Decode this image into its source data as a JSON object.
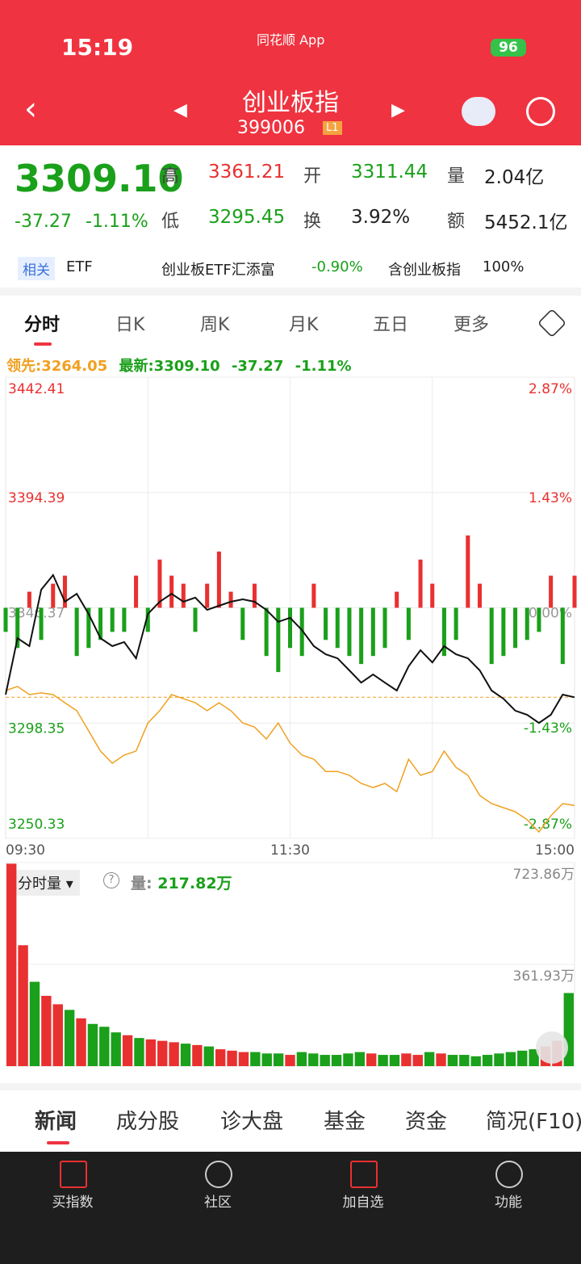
{
  "status": {
    "time": "15:19",
    "app": "同花顺 App",
    "battery": "96"
  },
  "header": {
    "title": "创业板指",
    "code": "399006",
    "level": "L1"
  },
  "quote": {
    "price": "3309.10",
    "change": "-37.27",
    "pct": "-1.11%",
    "fields": [
      {
        "label": "高",
        "value": "3361.21"
      },
      {
        "label": "开",
        "value": "3311.44"
      },
      {
        "label": "量",
        "value": "2.04亿"
      },
      {
        "label": "低",
        "value": "3295.45"
      },
      {
        "label": "换",
        "value": "3.92%"
      },
      {
        "label": "额",
        "value": "5452.1亿"
      }
    ]
  },
  "etf_row": {
    "tag": "相关",
    "etf": "ETF",
    "fund": "创业板ETF汇添富",
    "fund_pct": "-0.90%",
    "holds": "含创业板指",
    "holds_pct": "100%"
  },
  "tabs": [
    "分时",
    "日K",
    "周K",
    "月K",
    "五日",
    "更多"
  ],
  "info": {
    "lead_label": "领先:",
    "lead": "3264.05",
    "last_label": "最新:",
    "last": "3309.10",
    "change": "-37.27",
    "pct": "-1.11%"
  },
  "volume_info": {
    "selector": "分时量",
    "label": "量:",
    "value": "217.82万"
  },
  "section_tabs": [
    "新闻",
    "成分股",
    "诊大盘",
    "基金",
    "资金",
    "简况(F10)"
  ],
  "nav": [
    "买指数",
    "社区",
    "加自选",
    "功能"
  ],
  "chart_data": [
    {
      "type": "line",
      "x": [
        0,
        5,
        10,
        15,
        20,
        25,
        30,
        35,
        40,
        45,
        50,
        55,
        60,
        65,
        70,
        75,
        80,
        85,
        90,
        95,
        100,
        105,
        110,
        115,
        120,
        125,
        130,
        135,
        140,
        145,
        150,
        155,
        160,
        165,
        170,
        175,
        180,
        185,
        190,
        195,
        200,
        205,
        210,
        215,
        220,
        225,
        230,
        235,
        240
      ],
      "xlim": [
        0,
        240
      ],
      "xticks": [
        {
          "value": 0,
          "label": "09:30"
        },
        {
          "value": 120,
          "label": "11:30"
        },
        {
          "value": 240,
          "label": "15:00"
        }
      ],
      "ylim": [
        3250.33,
        3442.41
      ],
      "yticks": [
        3250.33,
        3298.35,
        3346.37,
        3394.39,
        3442.41
      ],
      "y2lim": [
        -2.87,
        2.87
      ],
      "y2ticks": [
        {
          "value": -2.87,
          "label": "-2.87%"
        },
        {
          "value": -1.43,
          "label": "-1.43%"
        },
        {
          "value": 0,
          "label": "0.00%"
        },
        {
          "value": 1.43,
          "label": "1.43%"
        },
        {
          "value": 2.87,
          "label": "2.87%"
        }
      ],
      "series": [
        {
          "color": "#111111",
          "values": [
            3310.2,
            3333.7,
            3330.4,
            3353.9,
            3360,
            3348.9,
            3352.2,
            3343.8,
            3333.7,
            3330.4,
            3332.1,
            3325.3,
            3343.8,
            3348.9,
            3352.2,
            3348.9,
            3350.6,
            3345.5,
            3347.2,
            3348.9,
            3349.9,
            3348.9,
            3345.5,
            3340.5,
            3342.2,
            3337.1,
            3330.4,
            3327,
            3325.3,
            3320.3,
            3315.2,
            3318.6,
            3315.2,
            3311.9,
            3322,
            3328.7,
            3323.6,
            3330.4,
            3327,
            3325.3,
            3320.3,
            3311.9,
            3308.5,
            3303.5,
            3301.8,
            3298.4,
            3301.8,
            3310.2,
            3309.1
          ]
        },
        {
          "color": "#f0a020",
          "values": [
            3311.9,
            3313.6,
            3310.2,
            3310.9,
            3310.2,
            3306.8,
            3303.5,
            3295.1,
            3286.7,
            3281.6,
            3285,
            3286.7,
            3298.4,
            3303.5,
            3310.2,
            3308.5,
            3306.8,
            3303.5,
            3306.8,
            3303.5,
            3298.4,
            3296.7,
            3291.7,
            3298.4,
            3290,
            3285,
            3283.3,
            3278.2,
            3278.2,
            3276.6,
            3273.2,
            3271.5,
            3273.2,
            3269.8,
            3283.3,
            3276.6,
            3278.2,
            3286.7,
            3279.9,
            3276.6,
            3268.2,
            3264.8,
            3263.1,
            3261.4,
            3258.1,
            3253,
            3259.7,
            3264.8,
            3264.05
          ]
        }
      ],
      "bar_values": [
        -0.3,
        -0.5,
        0.2,
        -0.4,
        0.3,
        0.4,
        -0.6,
        -0.5,
        -0.4,
        -0.3,
        -0.3,
        0.4,
        -0.3,
        0.6,
        0.4,
        0.3,
        -0.3,
        0.3,
        0.7,
        0.2,
        -0.4,
        0.3,
        -0.6,
        -0.8,
        -0.5,
        -0.6,
        0.3,
        -0.4,
        -0.5,
        -0.6,
        -0.7,
        -0.6,
        -0.5,
        0.2,
        -0.4,
        0.6,
        0.3,
        -0.6,
        -0.4,
        0.9,
        0.3,
        -0.7,
        -0.6,
        -0.5,
        -0.4,
        -0.3,
        0.4,
        -0.7,
        0.4
      ],
      "up_color": "#e93030",
      "down_color": "#1aa01a"
    },
    {
      "type": "bar",
      "ylim": [
        0,
        723.86
      ],
      "yticks": [
        {
          "value": 361.93,
          "label": "361.93万"
        },
        {
          "value": 723.86,
          "label": "723.86万"
        }
      ],
      "values": [
        720,
        430,
        300,
        250,
        220,
        200,
        170,
        150,
        140,
        120,
        110,
        100,
        95,
        90,
        85,
        80,
        75,
        70,
        60,
        55,
        50,
        50,
        45,
        45,
        40,
        50,
        45,
        40,
        40,
        45,
        50,
        45,
        40,
        40,
        45,
        40,
        50,
        45,
        40,
        40,
        35,
        40,
        45,
        50,
        55,
        60,
        70,
        90,
        260
      ]
    }
  ]
}
